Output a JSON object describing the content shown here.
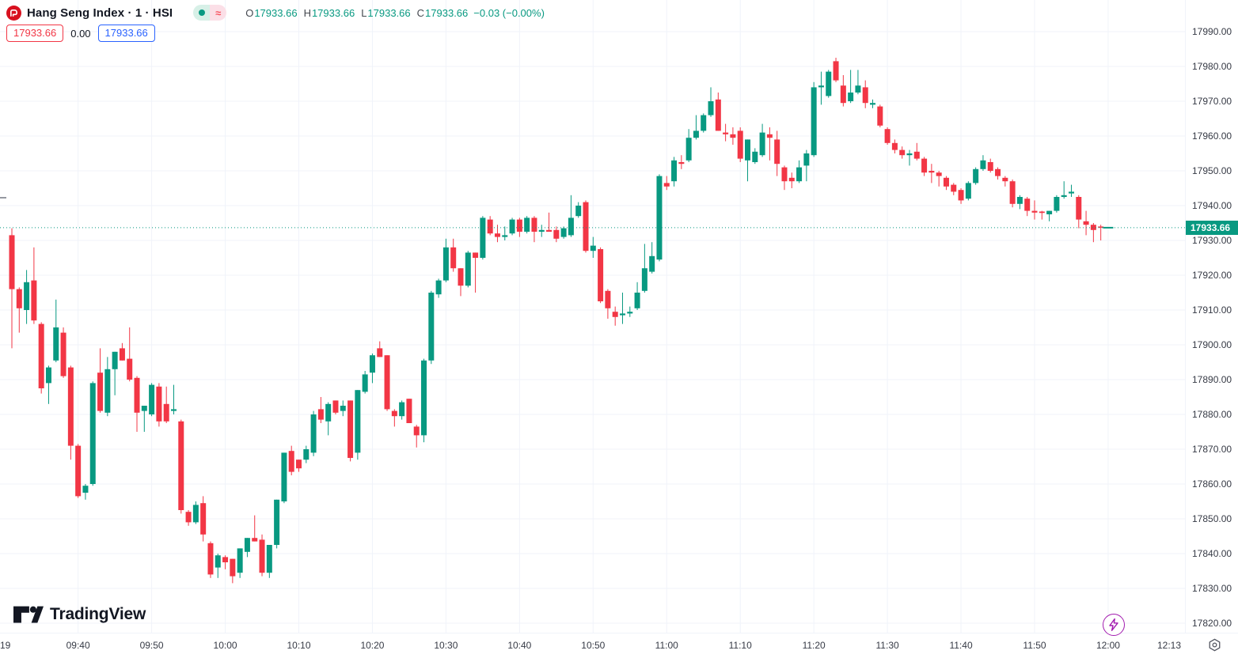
{
  "header": {
    "symbol_title": "Hang Seng Index · 1 · HSI",
    "status_icons": [
      "market-open-dot",
      "approx-delayed-data"
    ],
    "legend": {
      "open_label": "O",
      "open": "17933.66",
      "high_label": "H",
      "high": "17933.66",
      "low_label": "L",
      "low": "17933.66",
      "close_label": "C",
      "close": "17933.66",
      "change": "−0.03 (−0.00%)"
    },
    "price_tags": {
      "red_tag": "17933.66",
      "center_value": "0.00",
      "blue_tag": "17933.66"
    }
  },
  "watermark": {
    "brand": "TradingView"
  },
  "price_axis": {
    "ticks": [
      "17990.00",
      "17980.00",
      "17970.00",
      "17960.00",
      "17950.00",
      "17940.00",
      "17930.00",
      "17920.00",
      "17910.00",
      "17900.00",
      "17890.00",
      "17880.00",
      "17870.00",
      "17860.00",
      "17850.00",
      "17840.00",
      "17830.00",
      "17820.00"
    ],
    "last_price": "17933.66"
  },
  "time_axis": {
    "day_label": "19",
    "ticks": [
      "09:40",
      "09:50",
      "10:00",
      "10:10",
      "10:20",
      "10:30",
      "10:40",
      "10:50",
      "11:00",
      "11:10",
      "11:20",
      "11:30",
      "11:40",
      "11:50",
      "12:00"
    ],
    "current_time": "12:13"
  },
  "colors": {
    "up": "#089981",
    "down": "#f23645",
    "grid": "#f0f3fa",
    "last_price_tag_bg": "#089981",
    "accent_blue": "#2962ff",
    "logo_red": "#d8111f",
    "lightning_purple": "#a21caf",
    "axis_text": "#363a45"
  },
  "chart_data": {
    "type": "candlestick",
    "title": "Hang Seng Index",
    "symbol": "HSI",
    "interval_minutes": 1,
    "ylabel": "Price",
    "ylim": [
      17820,
      17990
    ],
    "grid": true,
    "up_color": "#089981",
    "down_color": "#f23645",
    "grid_color": "#f0f3fa",
    "last_price": 17933.66,
    "last_price_line_style": "dotted",
    "columns": [
      "time",
      "open",
      "high",
      "low",
      "close"
    ],
    "candles": [
      [
        "09:31",
        17931.5,
        17933.5,
        17899.0,
        17916.0
      ],
      [
        "09:32",
        17916.0,
        17916.5,
        17903.5,
        17910.5
      ],
      [
        "09:33",
        17910.0,
        17921.5,
        17906.0,
        17918.0
      ],
      [
        "09:34",
        17918.5,
        17928.0,
        17906.0,
        17907.0
      ],
      [
        "09:35",
        17906.0,
        17906.5,
        17886.0,
        17887.5
      ],
      [
        "09:36",
        17889.0,
        17894.0,
        17883.0,
        17893.5
      ],
      [
        "09:37",
        17895.5,
        17913.0,
        17895.0,
        17905.0
      ],
      [
        "09:38",
        17903.5,
        17905.0,
        17890.5,
        17891.0
      ],
      [
        "09:39",
        17893.5,
        17894.0,
        17867.0,
        17871.0
      ],
      [
        "09:40",
        17871.0,
        17871.5,
        17856.0,
        17856.5
      ],
      [
        "09:41",
        17857.5,
        17860.0,
        17855.5,
        17859.5
      ],
      [
        "09:42",
        17860.0,
        17889.5,
        17859.5,
        17889.0
      ],
      [
        "09:43",
        17892.0,
        17899.0,
        17880.5,
        17881.0
      ],
      [
        "09:44",
        17880.5,
        17896.5,
        17879.5,
        17893.0
      ],
      [
        "09:45",
        17893.0,
        17898.0,
        17885.5,
        17898.0
      ],
      [
        "09:46",
        17899.0,
        17900.5,
        17895.5,
        17895.5
      ],
      [
        "09:47",
        17896.0,
        17905.0,
        17889.5,
        17890.0
      ],
      [
        "09:48",
        17890.5,
        17891.0,
        17875.0,
        17880.5
      ],
      [
        "09:49",
        17881.0,
        17882.5,
        17875.0,
        17882.5
      ],
      [
        "09:50",
        17880.0,
        17889.0,
        17879.5,
        17888.5
      ],
      [
        "09:51",
        17888.0,
        17889.0,
        17876.5,
        17878.0
      ],
      [
        "09:52",
        17883.0,
        17888.0,
        17877.5,
        17878.0
      ],
      [
        "09:53",
        17881.0,
        17888.5,
        17880.0,
        17881.5
      ],
      [
        "09:54",
        17878.0,
        17878.5,
        17851.5,
        17852.5
      ],
      [
        "09:55",
        17852.0,
        17852.5,
        17848.0,
        17849.0
      ],
      [
        "09:56",
        17849.0,
        17855.0,
        17848.5,
        17854.0
      ],
      [
        "09:57",
        17854.5,
        17856.5,
        17843.5,
        17845.5
      ],
      [
        "09:58",
        17843.0,
        17843.5,
        17833.0,
        17834.0
      ],
      [
        "09:59",
        17836.0,
        17840.0,
        17833.0,
        17839.5
      ],
      [
        "10:00",
        17839.0,
        17839.5,
        17835.5,
        17837.5
      ],
      [
        "10:01",
        17838.5,
        17838.5,
        17831.5,
        17833.5
      ],
      [
        "10:02",
        17834.5,
        17841.5,
        17833.0,
        17841.5
      ],
      [
        "10:03",
        17840.5,
        17844.5,
        17839.0,
        17844.5
      ],
      [
        "10:04",
        17844.5,
        17851.0,
        17843.5,
        17843.5
      ],
      [
        "10:05",
        17844.0,
        17845.5,
        17833.5,
        17834.5
      ],
      [
        "10:06",
        17834.5,
        17842.5,
        17833.0,
        17842.5
      ],
      [
        "10:07",
        17842.5,
        17855.5,
        17841.5,
        17855.5
      ],
      [
        "10:08",
        17855.0,
        17869.0,
        17854.5,
        17869.0
      ],
      [
        "10:09",
        17869.5,
        17871.0,
        17862.5,
        17863.5
      ],
      [
        "10:10",
        17867.0,
        17867.0,
        17863.5,
        17864.5
      ],
      [
        "10:11",
        17867.0,
        17871.0,
        17866.0,
        17870.0
      ],
      [
        "10:12",
        17869.0,
        17881.0,
        17868.0,
        17880.0
      ],
      [
        "10:13",
        17881.5,
        17885.0,
        17877.5,
        17878.5
      ],
      [
        "10:14",
        17878.0,
        17883.5,
        17874.0,
        17883.0
      ],
      [
        "10:15",
        17884.0,
        17884.0,
        17880.0,
        17880.5
      ],
      [
        "10:16",
        17881.0,
        17884.0,
        17879.5,
        17882.5
      ],
      [
        "10:17",
        17884.0,
        17884.0,
        17866.5,
        17867.5
      ],
      [
        "10:18",
        17869.0,
        17887.0,
        17867.0,
        17887.0
      ],
      [
        "10:19",
        17886.5,
        17892.5,
        17886.0,
        17891.5
      ],
      [
        "10:20",
        17892.0,
        17897.5,
        17889.0,
        17897.0
      ],
      [
        "10:21",
        17899.0,
        17901.0,
        17896.5,
        17896.5
      ],
      [
        "10:22",
        17897.0,
        17897.0,
        17881.0,
        17881.5
      ],
      [
        "10:23",
        17881.0,
        17881.5,
        17876.5,
        17879.5
      ],
      [
        "10:24",
        17879.5,
        17884.0,
        17878.5,
        17883.5
      ],
      [
        "10:25",
        17884.5,
        17884.5,
        17877.5,
        17877.5
      ],
      [
        "10:26",
        17876.5,
        17877.0,
        17870.5,
        17874.0
      ],
      [
        "10:27",
        17874.0,
        17896.0,
        17872.0,
        17895.5
      ],
      [
        "10:28",
        17895.5,
        17915.5,
        17894.5,
        17915.0
      ],
      [
        "10:29",
        17914.5,
        17919.0,
        17913.5,
        17918.5
      ],
      [
        "10:30",
        17918.5,
        17930.5,
        17918.0,
        17928.0
      ],
      [
        "10:31",
        17928.0,
        17930.5,
        17921.0,
        17922.0
      ],
      [
        "10:32",
        17922.0,
        17922.0,
        17914.0,
        17917.0
      ],
      [
        "10:33",
        17917.0,
        17927.0,
        17916.5,
        17926.5
      ],
      [
        "10:34",
        17926.5,
        17926.5,
        17915.0,
        17925.0
      ],
      [
        "10:35",
        17925.0,
        17937.0,
        17924.5,
        17936.5
      ],
      [
        "10:36",
        17936.0,
        17937.0,
        17931.5,
        17932.0
      ],
      [
        "10:37",
        17932.0,
        17934.5,
        17929.5,
        17931.0
      ],
      [
        "10:38",
        17931.0,
        17934.0,
        17930.0,
        17931.5
      ],
      [
        "10:39",
        17932.0,
        17936.5,
        17931.5,
        17936.0
      ],
      [
        "10:40",
        17936.0,
        17936.5,
        17931.0,
        17932.5
      ],
      [
        "10:41",
        17932.5,
        17937.0,
        17932.0,
        17936.5
      ],
      [
        "10:42",
        17936.5,
        17937.0,
        17929.5,
        17932.5
      ],
      [
        "10:43",
        17932.5,
        17934.5,
        17931.0,
        17933.0
      ],
      [
        "10:44",
        17933.0,
        17938.0,
        17932.5,
        17932.5
      ],
      [
        "10:45",
        17933.0,
        17934.0,
        17929.5,
        17930.5
      ],
      [
        "10:46",
        17931.0,
        17934.0,
        17930.5,
        17933.5
      ],
      [
        "10:47",
        17931.5,
        17943.0,
        17931.0,
        17936.5
      ],
      [
        "10:48",
        17937.0,
        17941.0,
        17936.5,
        17940.0
      ],
      [
        "10:49",
        17941.0,
        17941.5,
        17926.5,
        17927.0
      ],
      [
        "10:50",
        17927.0,
        17931.0,
        17925.0,
        17928.5
      ],
      [
        "10:51",
        17927.5,
        17928.0,
        17912.0,
        17912.5
      ],
      [
        "10:52",
        17915.5,
        17916.0,
        17907.5,
        17910.5
      ],
      [
        "10:53",
        17909.5,
        17911.0,
        17905.5,
        17908.0
      ],
      [
        "10:54",
        17908.5,
        17915.0,
        17906.0,
        17909.0
      ],
      [
        "10:55",
        17909.0,
        17911.0,
        17908.0,
        17909.5
      ],
      [
        "10:56",
        17910.5,
        17918.0,
        17910.0,
        17915.0
      ],
      [
        "10:57",
        17915.5,
        17929.0,
        17915.0,
        17922.0
      ],
      [
        "10:58",
        17921.0,
        17929.5,
        17920.5,
        17925.5
      ],
      [
        "10:59",
        17924.5,
        17949.0,
        17924.0,
        17948.5
      ],
      [
        "11:00",
        17946.5,
        17948.5,
        17944.5,
        17945.5
      ],
      [
        "11:01",
        17947.0,
        17954.0,
        17945.5,
        17953.0
      ],
      [
        "11:02",
        17952.5,
        17954.5,
        17950.5,
        17952.0
      ],
      [
        "11:03",
        17953.0,
        17962.0,
        17952.5,
        17959.5
      ],
      [
        "11:04",
        17959.5,
        17966.0,
        17959.0,
        17961.5
      ],
      [
        "11:05",
        17961.5,
        17966.5,
        17961.0,
        17966.0
      ],
      [
        "11:06",
        17966.0,
        17974.0,
        17965.5,
        17970.0
      ],
      [
        "11:07",
        17970.5,
        17972.5,
        17961.5,
        17961.5
      ],
      [
        "11:08",
        17961.0,
        17963.5,
        17958.5,
        17960.5
      ],
      [
        "11:09",
        17960.5,
        17962.5,
        17957.5,
        17959.5
      ],
      [
        "11:10",
        17961.5,
        17962.5,
        17952.5,
        17953.5
      ],
      [
        "11:11",
        17953.0,
        17959.0,
        17947.0,
        17959.0
      ],
      [
        "11:12",
        17952.5,
        17956.5,
        17952.0,
        17955.5
      ],
      [
        "11:13",
        17954.5,
        17963.5,
        17954.0,
        17961.0
      ],
      [
        "11:14",
        17960.5,
        17962.5,
        17953.0,
        17959.5
      ],
      [
        "11:15",
        17959.0,
        17961.5,
        17948.5,
        17952.0
      ],
      [
        "11:16",
        17951.0,
        17951.5,
        17944.5,
        17947.0
      ],
      [
        "11:17",
        17948.0,
        17949.5,
        17945.0,
        17947.0
      ],
      [
        "11:18",
        17947.0,
        17953.0,
        17946.5,
        17951.0
      ],
      [
        "11:19",
        17951.5,
        17956.0,
        17947.0,
        17955.0
      ],
      [
        "11:20",
        17954.5,
        17975.5,
        17954.0,
        17974.0
      ],
      [
        "11:21",
        17974.0,
        17978.5,
        17969.0,
        17974.5
      ],
      [
        "11:22",
        17971.5,
        17979.0,
        17971.0,
        17978.5
      ],
      [
        "11:23",
        17981.5,
        17982.5,
        17975.5,
        17976.0
      ],
      [
        "11:24",
        17974.5,
        17977.5,
        17968.5,
        17969.5
      ],
      [
        "11:25",
        17970.0,
        17979.0,
        17969.5,
        17972.5
      ],
      [
        "11:26",
        17972.5,
        17979.0,
        17972.0,
        17974.5
      ],
      [
        "11:27",
        17974.0,
        17976.0,
        17968.0,
        17969.5
      ],
      [
        "11:28",
        17969.0,
        17970.5,
        17968.0,
        17969.5
      ],
      [
        "11:29",
        17968.5,
        17969.0,
        17962.5,
        17963.0
      ],
      [
        "11:30",
        17962.0,
        17962.5,
        17957.5,
        17958.0
      ],
      [
        "11:31",
        17958.0,
        17959.0,
        17955.0,
        17956.0
      ],
      [
        "11:32",
        17956.0,
        17957.0,
        17953.5,
        17954.5
      ],
      [
        "11:33",
        17954.5,
        17956.0,
        17951.5,
        17955.0
      ],
      [
        "11:34",
        17955.5,
        17958.0,
        17953.0,
        17953.5
      ],
      [
        "11:35",
        17953.5,
        17954.0,
        17948.5,
        17949.5
      ],
      [
        "11:36",
        17950.0,
        17952.0,
        17946.5,
        17949.5
      ],
      [
        "11:37",
        17949.5,
        17950.0,
        17945.5,
        17948.5
      ],
      [
        "11:38",
        17948.0,
        17948.5,
        17944.5,
        17945.5
      ],
      [
        "11:39",
        17946.0,
        17946.5,
        17943.0,
        17944.0
      ],
      [
        "11:40",
        17944.5,
        17945.0,
        17940.5,
        17941.5
      ],
      [
        "11:41",
        17942.0,
        17947.0,
        17941.5,
        17946.5
      ],
      [
        "11:42",
        17946.5,
        17951.0,
        17946.0,
        17950.5
      ],
      [
        "11:43",
        17950.5,
        17954.5,
        17950.0,
        17953.0
      ],
      [
        "11:44",
        17952.5,
        17953.5,
        17949.5,
        17950.0
      ],
      [
        "11:45",
        17950.5,
        17951.0,
        17947.5,
        17948.5
      ],
      [
        "11:46",
        17948.0,
        17948.5,
        17945.5,
        17947.0
      ],
      [
        "11:47",
        17947.0,
        17947.5,
        17939.5,
        17940.5
      ],
      [
        "11:48",
        17940.5,
        17943.0,
        17939.0,
        17942.5
      ],
      [
        "11:49",
        17942.0,
        17942.5,
        17937.0,
        17938.5
      ],
      [
        "11:50",
        17938.5,
        17941.5,
        17936.0,
        17938.0
      ],
      [
        "11:51",
        17938.3,
        17938.5,
        17936.0,
        17937.9
      ],
      [
        "11:52",
        17937.5,
        17938.5,
        17935.5,
        17938.5
      ],
      [
        "11:53",
        17938.5,
        17943.0,
        17938.0,
        17942.5
      ],
      [
        "11:54",
        17942.5,
        17947.0,
        17942.0,
        17943.0
      ],
      [
        "11:55",
        17943.5,
        17946.0,
        17942.5,
        17944.0
      ],
      [
        "11:56",
        17942.5,
        17943.0,
        17933.5,
        17936.0
      ],
      [
        "11:57",
        17935.5,
        17938.5,
        17931.5,
        17934.5
      ],
      [
        "11:58",
        17934.5,
        17935.0,
        17929.5,
        17933.0
      ],
      [
        "11:59",
        17934.0,
        17934.5,
        17930.0,
        17933.7
      ],
      [
        "12:00",
        17933.66,
        17933.66,
        17933.66,
        17933.66
      ]
    ]
  }
}
